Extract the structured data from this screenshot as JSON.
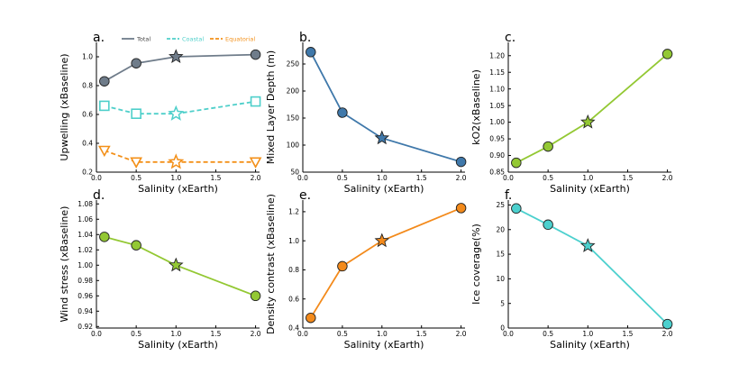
{
  "chart_data": [
    {
      "type": "line",
      "panel_label": "a.",
      "xlabel": "Salinity (xEarth)",
      "ylabel": "Upwelling (xBaseline)",
      "xlim": [
        0,
        2.05
      ],
      "ylim": [
        0.2,
        1.1
      ],
      "xticks": [
        "0.0",
        "0.5",
        "1.0",
        "1.5",
        "2.0"
      ],
      "yticks": [
        "0.2",
        "0.4",
        "0.6",
        "0.8",
        "1.0"
      ],
      "legend": "top",
      "series": [
        {
          "name": "Total",
          "color": "#6f7c8a",
          "dashed": false,
          "marker": "circle",
          "x": [
            0.1,
            0.5,
            1.0,
            2.0
          ],
          "y": [
            0.83,
            0.955,
            1.0,
            1.015
          ]
        },
        {
          "name": "Coastal",
          "color": "#4ecfca",
          "dashed": true,
          "marker": "square-open",
          "x": [
            0.1,
            0.5,
            1.0,
            2.0
          ],
          "y": [
            0.66,
            0.605,
            0.605,
            0.69
          ]
        },
        {
          "name": "Equatorial",
          "color": "#f39019",
          "dashed": true,
          "marker": "triangle-open",
          "x": [
            0.1,
            0.5,
            1.0,
            2.0
          ],
          "y": [
            0.35,
            0.27,
            0.27,
            0.27
          ]
        }
      ]
    },
    {
      "type": "line",
      "panel_label": "b.",
      "xlabel": "Salinity (xEarth)",
      "ylabel": "Mixed Layer Depth (m)",
      "xlim": [
        0,
        2.05
      ],
      "ylim": [
        50,
        290
      ],
      "xticks": [
        "0.0",
        "0.5",
        "1.0",
        "1.5",
        "2.0"
      ],
      "yticks": [
        "50",
        "100",
        "150",
        "200",
        "250"
      ],
      "series": [
        {
          "color": "#3f78aa",
          "marker": "circle",
          "x": [
            0.1,
            0.5,
            1.0,
            2.0
          ],
          "y": [
            272,
            160,
            113,
            69
          ]
        }
      ]
    },
    {
      "type": "line",
      "panel_label": "c.",
      "xlabel": "Salinity (xEarth)",
      "ylabel": "kO2(xBaseline)",
      "xlim": [
        0,
        2.05
      ],
      "ylim": [
        0.85,
        1.24
      ],
      "xticks": [
        "0.0",
        "0.5",
        "1.0",
        "1.5",
        "2.0"
      ],
      "yticks": [
        "0.85",
        "0.90",
        "0.95",
        "1.00",
        "1.05",
        "1.10",
        "1.15",
        "1.20"
      ],
      "series": [
        {
          "color": "#93c833",
          "marker": "circle",
          "x": [
            0.1,
            0.5,
            1.0,
            2.0
          ],
          "y": [
            0.878,
            0.927,
            1.0,
            1.205
          ]
        }
      ]
    },
    {
      "type": "line",
      "panel_label": "d.",
      "xlabel": "Salinity (xEarth)",
      "ylabel": "Wind stress (xBaseline)",
      "xlim": [
        0,
        2.05
      ],
      "ylim": [
        0.918,
        1.085
      ],
      "xticks": [
        "0.0",
        "0.5",
        "1.0",
        "1.5",
        "2.0"
      ],
      "yticks": [
        "0.92",
        "0.94",
        "0.96",
        "0.98",
        "1.00",
        "1.02",
        "1.04",
        "1.06",
        "1.08"
      ],
      "series": [
        {
          "color": "#93c833",
          "marker": "circle",
          "x": [
            0.1,
            0.5,
            1.0,
            2.0
          ],
          "y": [
            1.037,
            1.026,
            1.0,
            0.96
          ]
        }
      ]
    },
    {
      "type": "line",
      "panel_label": "e.",
      "xlabel": "Salinity (xEarth)",
      "ylabel": "Density contrast (xBaseline)",
      "xlim": [
        0,
        2.05
      ],
      "ylim": [
        0.4,
        1.28
      ],
      "xticks": [
        "0.0",
        "0.5",
        "1.0",
        "1.5",
        "2.0"
      ],
      "yticks": [
        "0.4",
        "0.6",
        "0.8",
        "1.0",
        "1.2"
      ],
      "series": [
        {
          "color": "#f38a1b",
          "marker": "circle",
          "x": [
            0.1,
            0.5,
            1.0,
            2.0
          ],
          "y": [
            0.47,
            0.825,
            1.0,
            1.225
          ]
        }
      ]
    },
    {
      "type": "line",
      "panel_label": "f.",
      "xlabel": "Salinity (xEarth)",
      "ylabel": "Ice coverage(%)",
      "xlim": [
        0,
        2.05
      ],
      "ylim": [
        0,
        26
      ],
      "xticks": [
        "0.0",
        "0.5",
        "1.0",
        "1.5",
        "2.0"
      ],
      "yticks": [
        "0",
        "5",
        "10",
        "15",
        "20",
        "25"
      ],
      "series": [
        {
          "color": "#4cd0ce",
          "marker": "circle",
          "x": [
            0.1,
            0.5,
            1.0,
            2.0
          ],
          "y": [
            24.3,
            21.0,
            16.7,
            0.8
          ]
        }
      ]
    }
  ]
}
